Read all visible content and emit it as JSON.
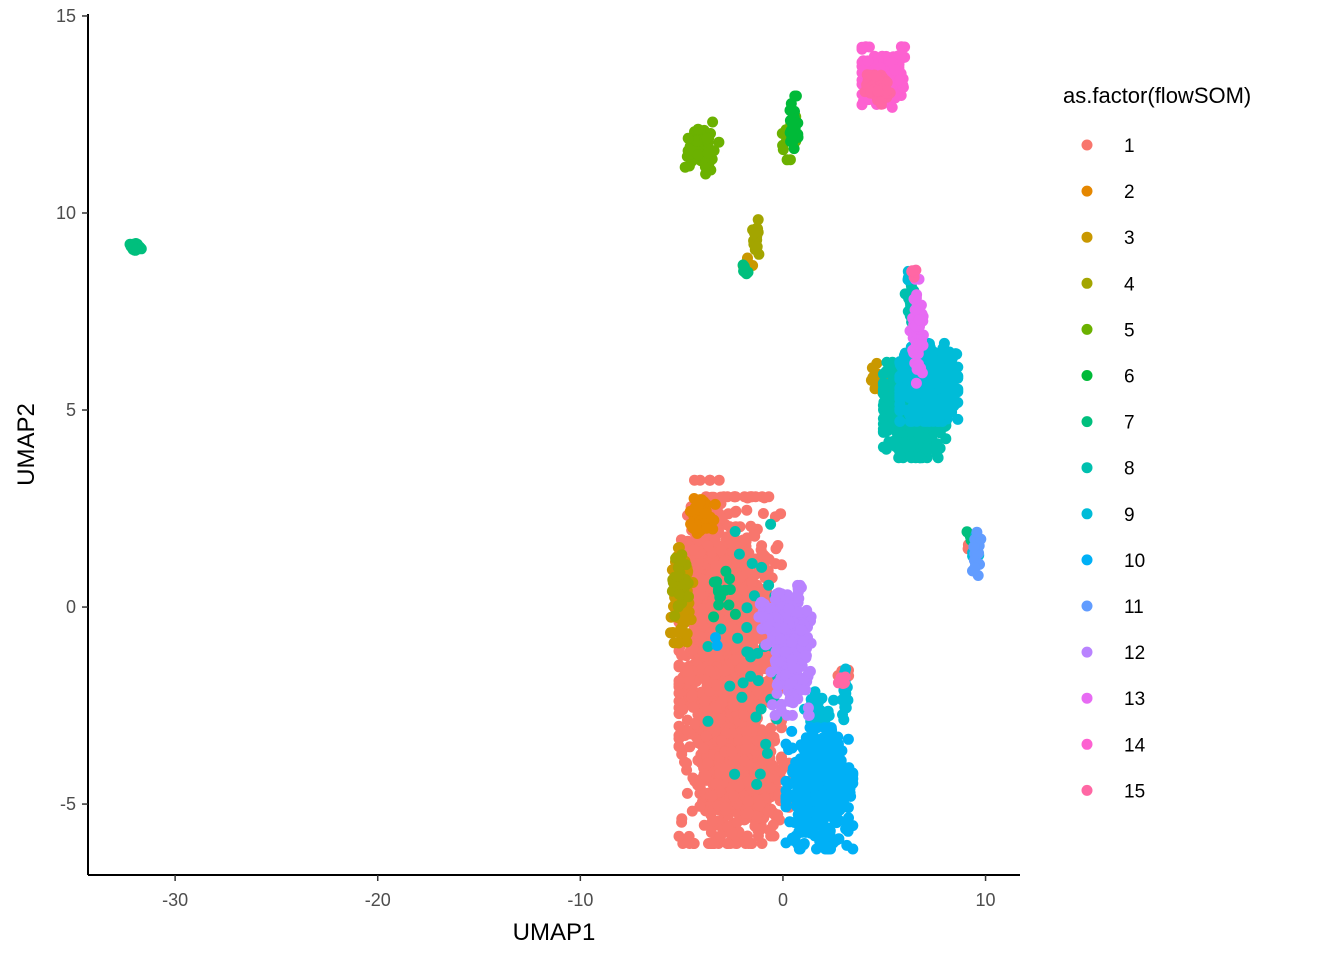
{
  "chart_data": {
    "type": "scatter",
    "title": "",
    "xlabel": "UMAP1",
    "ylabel": "UMAP2",
    "xlim": [
      -34.3,
      11.7
    ],
    "ylim": [
      -6.8,
      15.05
    ],
    "xticks": [
      -30,
      -20,
      -10,
      0,
      10
    ],
    "xtick_labels": [
      "-30",
      "-20",
      "-10",
      "0",
      "10"
    ],
    "yticks": [
      -5,
      0,
      5,
      10,
      15
    ],
    "ytick_labels": [
      "-5",
      "0",
      "5",
      "10",
      "15"
    ],
    "grid": false,
    "legend": {
      "title": "as.factor(flowSOM)",
      "position": "right"
    },
    "series": [
      {
        "name": "1",
        "color": "#F8766D",
        "clusters": [
          {
            "center": [
              -2.6,
              -1.6
            ],
            "spread": [
              1.15,
              2.0
            ],
            "n": 1400
          },
          {
            "center": [
              -3.9,
              0.8
            ],
            "spread": [
              0.5,
              1.1
            ],
            "n": 260
          },
          {
            "center": [
              -1.9,
              -4.6
            ],
            "spread": [
              1.0,
              0.55
            ],
            "n": 320
          },
          {
            "center": [
              3.0,
              -1.8
            ],
            "spread": [
              0.15,
              0.1
            ],
            "n": 10
          },
          {
            "center": [
              9.2,
              1.55
            ],
            "spread": [
              0.1,
              0.08
            ],
            "n": 8
          }
        ]
      },
      {
        "name": "2",
        "color": "#E58700",
        "clusters": [
          {
            "center": [
              -4.0,
              2.35
            ],
            "spread": [
              0.3,
              0.22
            ],
            "n": 70
          }
        ]
      },
      {
        "name": "3",
        "color": "#C99800",
        "clusters": [
          {
            "center": [
              -5.0,
              0.3
            ],
            "spread": [
              0.25,
              0.55
            ],
            "n": 90
          },
          {
            "center": [
              5.2,
              5.7
            ],
            "spread": [
              0.5,
              0.25
            ],
            "n": 30
          },
          {
            "center": [
              -1.7,
              8.7
            ],
            "spread": [
              0.12,
              0.1
            ],
            "n": 6
          }
        ]
      },
      {
        "name": "4",
        "color": "#A3A500",
        "clusters": [
          {
            "center": [
              -1.3,
              9.45
            ],
            "spread": [
              0.12,
              0.25
            ],
            "n": 20
          },
          {
            "center": [
              -5.1,
              0.6
            ],
            "spread": [
              0.2,
              0.4
            ],
            "n": 30
          }
        ]
      },
      {
        "name": "5",
        "color": "#6BB100",
        "clusters": [
          {
            "center": [
              -4.0,
              11.65
            ],
            "spread": [
              0.4,
              0.3
            ],
            "n": 60
          },
          {
            "center": [
              0.3,
              11.9
            ],
            "spread": [
              0.15,
              0.25
            ],
            "n": 15
          }
        ]
      },
      {
        "name": "6",
        "color": "#00BA38",
        "clusters": [
          {
            "center": [
              0.5,
              12.2
            ],
            "spread": [
              0.12,
              0.35
            ],
            "n": 30
          }
        ]
      },
      {
        "name": "7",
        "color": "#00BF7D",
        "clusters": [
          {
            "center": [
              -32.0,
              9.1
            ],
            "spread": [
              0.15,
              0.07
            ],
            "n": 20
          },
          {
            "center": [
              -1.9,
              8.55
            ],
            "spread": [
              0.12,
              0.1
            ],
            "n": 10
          },
          {
            "center": [
              -3.0,
              0.3
            ],
            "spread": [
              0.6,
              0.3
            ],
            "n": 15
          },
          {
            "center": [
              9.3,
              1.75
            ],
            "spread": [
              0.1,
              0.1
            ],
            "n": 8
          }
        ]
      },
      {
        "name": "8",
        "color": "#00C0AF",
        "clusters": [
          {
            "center": [
              6.5,
              5.0
            ],
            "spread": [
              0.7,
              0.55
            ],
            "n": 700
          },
          {
            "center": [
              -1.5,
              -1.2
            ],
            "spread": [
              1.0,
              1.5
            ],
            "n": 40
          },
          {
            "center": [
              6.3,
              8.0
            ],
            "spread": [
              0.12,
              0.35
            ],
            "n": 20
          }
        ]
      },
      {
        "name": "9",
        "color": "#00BCD8",
        "clusters": [
          {
            "center": [
              7.2,
              5.7
            ],
            "spread": [
              0.65,
              0.45
            ],
            "n": 650
          },
          {
            "center": [
              3.0,
              -2.2
            ],
            "spread": [
              0.1,
              0.3
            ],
            "n": 20
          },
          {
            "center": [
              1.8,
              -2.7
            ],
            "spread": [
              0.35,
              0.25
            ],
            "n": 25
          },
          {
            "center": [
              9.5,
              1.4
            ],
            "spread": [
              0.1,
              0.2
            ],
            "n": 10
          },
          {
            "center": [
              6.2,
              8.45
            ],
            "spread": [
              0.1,
              0.08
            ],
            "n": 5
          }
        ]
      },
      {
        "name": "10",
        "color": "#00B0F6",
        "clusters": [
          {
            "center": [
              1.8,
              -4.6
            ],
            "spread": [
              0.75,
              0.7
            ],
            "n": 450
          },
          {
            "center": [
              2.4,
              -4.0
            ],
            "spread": [
              0.35,
              0.35
            ],
            "n": 80
          },
          {
            "center": [
              -3.3,
              -0.8
            ],
            "spread": [
              0.08,
              0.08
            ],
            "n": 2
          }
        ]
      },
      {
        "name": "11",
        "color": "#619CFF",
        "clusters": [
          {
            "center": [
              9.55,
              1.35
            ],
            "spread": [
              0.1,
              0.25
            ],
            "n": 20
          }
        ]
      },
      {
        "name": "12",
        "color": "#B983FF",
        "clusters": [
          {
            "center": [
              0.4,
              -1.1
            ],
            "spread": [
              0.45,
              0.75
            ],
            "n": 240
          },
          {
            "center": [
              -0.6,
              -0.3
            ],
            "spread": [
              0.3,
              0.3
            ],
            "n": 30
          }
        ]
      },
      {
        "name": "13",
        "color": "#E76BF3",
        "clusters": [
          {
            "center": [
              6.6,
              7.0
            ],
            "spread": [
              0.15,
              0.6
            ],
            "n": 50
          }
        ]
      },
      {
        "name": "14",
        "color": "#FD61D1",
        "clusters": [
          {
            "center": [
              5.0,
              13.45
            ],
            "spread": [
              0.5,
              0.35
            ],
            "n": 200
          }
        ]
      },
      {
        "name": "15",
        "color": "#FF67A4",
        "clusters": [
          {
            "center": [
              4.7,
              13.2
            ],
            "spread": [
              0.3,
              0.2
            ],
            "n": 60
          },
          {
            "center": [
              6.5,
              8.5
            ],
            "spread": [
              0.08,
              0.1
            ],
            "n": 6
          },
          {
            "center": [
              3.0,
              -1.9
            ],
            "spread": [
              0.12,
              0.1
            ],
            "n": 5
          }
        ]
      }
    ]
  }
}
